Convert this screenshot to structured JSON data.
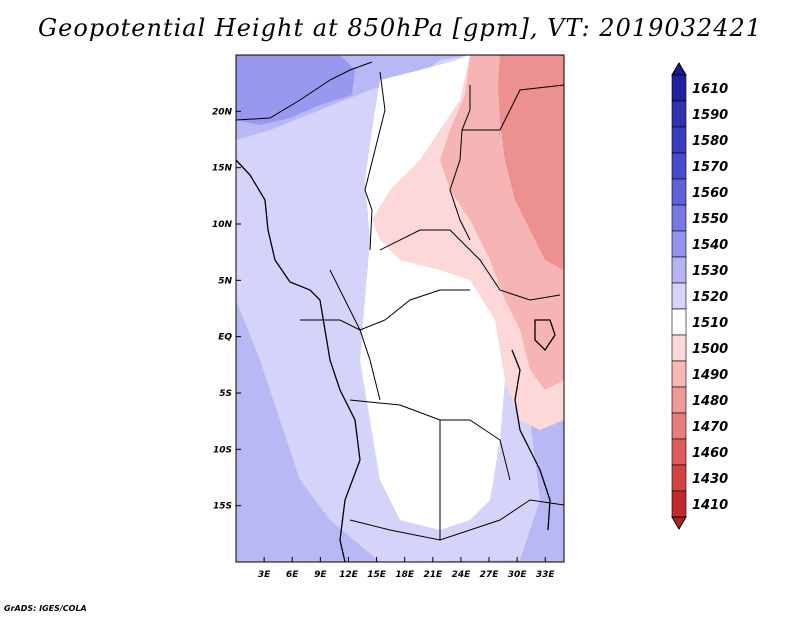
{
  "title": "Geopotential Height at 850hPa [gpm], VT: 2019032421",
  "credit": "GrADS: IGES/COLA",
  "map": {
    "lat_range": [
      -20,
      25
    ],
    "lon_range": [
      0,
      35
    ],
    "y_ticks": [
      {
        "lat": 20,
        "label": "20N"
      },
      {
        "lat": 15,
        "label": "15N"
      },
      {
        "lat": 10,
        "label": "10N"
      },
      {
        "lat": 5,
        "label": "5N"
      },
      {
        "lat": 0,
        "label": "EQ"
      },
      {
        "lat": -5,
        "label": "5S"
      },
      {
        "lat": -10,
        "label": "10S"
      },
      {
        "lat": -15,
        "label": "15S"
      }
    ],
    "x_ticks": [
      {
        "lon": 3,
        "label": "3E"
      },
      {
        "lon": 6,
        "label": "6E"
      },
      {
        "lon": 9,
        "label": "9E"
      },
      {
        "lon": 12,
        "label": "12E"
      },
      {
        "lon": 15,
        "label": "15E"
      },
      {
        "lon": 18,
        "label": "18E"
      },
      {
        "lon": 21,
        "label": "21E"
      },
      {
        "lon": 24,
        "label": "24E"
      },
      {
        "lon": 27,
        "label": "27E"
      },
      {
        "lon": 30,
        "label": "30E"
      },
      {
        "lon": 33,
        "label": "33E"
      }
    ]
  },
  "colorbar": {
    "levels": [
      {
        "label": "1610",
        "color": "#2020a0"
      },
      {
        "label": "1590",
        "color": "#3030b0"
      },
      {
        "label": "1580",
        "color": "#3c3cc0"
      },
      {
        "label": "1570",
        "color": "#4a4acc"
      },
      {
        "label": "1560",
        "color": "#6060d8"
      },
      {
        "label": "1550",
        "color": "#7878e4"
      },
      {
        "label": "1540",
        "color": "#9494ee"
      },
      {
        "label": "1530",
        "color": "#b4b4f4"
      },
      {
        "label": "1520",
        "color": "#d4d4fa"
      },
      {
        "label": "1510",
        "color": "#ffffff"
      },
      {
        "label": "1500",
        "color": "#fcd8d8"
      },
      {
        "label": "1490",
        "color": "#f8b8b8"
      },
      {
        "label": "1480",
        "color": "#f09a9a"
      },
      {
        "label": "1470",
        "color": "#e87c7c"
      },
      {
        "label": "1460",
        "color": "#de5c5c"
      },
      {
        "label": "1430",
        "color": "#d24444"
      },
      {
        "label": "1410",
        "color": "#c02a2a"
      }
    ],
    "top_color": "#1a1a8c",
    "bottom_color": "#b02020"
  },
  "field": {
    "regions": [
      {
        "name": "field-west-blue",
        "color": "#b8b8f4"
      },
      {
        "name": "field-northwest-blue",
        "color": "#9898ee"
      },
      {
        "name": "field-central-white",
        "color": "#ffffff"
      },
      {
        "name": "field-north-pink",
        "color": "#fcd8d8"
      },
      {
        "name": "field-east-pink",
        "color": "#f6b4b4"
      },
      {
        "name": "field-northeast-red",
        "color": "#ec9090"
      },
      {
        "name": "field-south-lavender",
        "color": "#d4d4fa"
      }
    ]
  }
}
